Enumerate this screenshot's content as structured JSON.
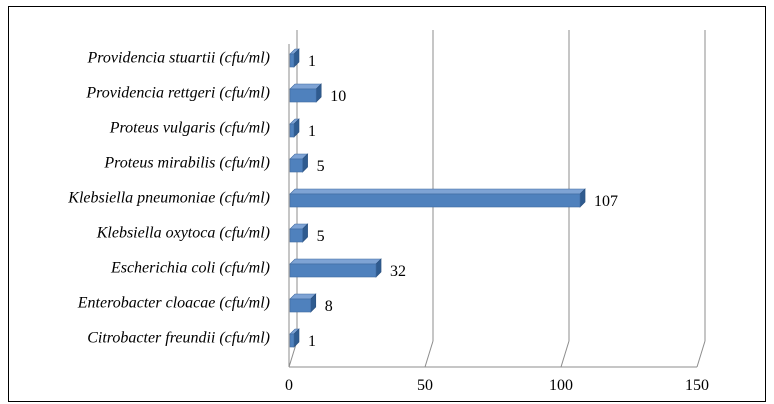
{
  "chart_data": {
    "type": "bar",
    "orientation": "horizontal",
    "style": "3d",
    "bar_color": "#4f81bd",
    "categories": [
      "Citrobacter freundii  (cfu/ml)",
      "Enterobacter cloacae (cfu/ml)",
      "Escherichia coli (cfu/ml)",
      "Klebsiella oxytoca (cfu/ml)",
      "Klebsiella pneumoniae (cfu/ml)",
      "Proteus mirabilis (cfu/ml)",
      "Proteus vulgaris (cfu/ml)",
      "Providencia rettgeri (cfu/ml)",
      "Providencia stuartii (cfu/ml)"
    ],
    "values": [
      1,
      8,
      32,
      5,
      107,
      5,
      1,
      10,
      1
    ],
    "data_labels": [
      "1",
      "8",
      "32",
      "5",
      "107",
      "5",
      "1",
      "10",
      "1"
    ],
    "xlim": [
      0,
      150
    ],
    "xticks": [
      "0",
      "50",
      "100",
      "150"
    ],
    "grid": true,
    "legend": "none"
  }
}
